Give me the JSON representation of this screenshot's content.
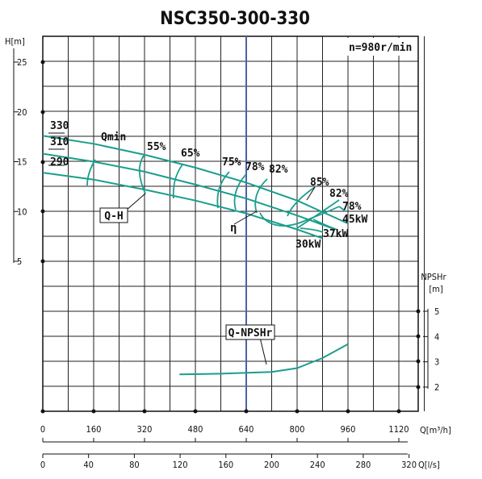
{
  "chart_data": {
    "type": "line",
    "title": "NSC350-300-330",
    "speed_label": "n=980r/min",
    "x_axis_flow_m3h": {
      "label": "Q[m³/h]",
      "ticks": [
        "0",
        "160",
        "320",
        "480",
        "640",
        "800",
        "960",
        "1120"
      ],
      "range": [
        0,
        1200
      ]
    },
    "x_axis_flow_ls": {
      "label": "Q[l/s]",
      "ticks": [
        "0",
        "40",
        "80",
        "120",
        "160",
        "200",
        "240",
        "280",
        "320"
      ],
      "range": [
        0,
        333.3
      ]
    },
    "y_axis_head": {
      "label": "H[m]",
      "ticks": [
        "5",
        "10",
        "15",
        "20",
        "25"
      ],
      "range": [
        0,
        25
      ]
    },
    "y_axis_npsh": {
      "label": "NPSHr",
      "unit": "[m]",
      "ticks": [
        "2",
        "3",
        "4",
        "5"
      ],
      "range": [
        2,
        5
      ]
    },
    "impeller_labels": [
      "330",
      "310",
      "290"
    ],
    "curve_labels": {
      "qmin": "Qmin",
      "qh": "Q-H",
      "eta": "η",
      "npsh": "Q-NPSHr"
    },
    "efficiency_labels": [
      "55%",
      "65%",
      "75%",
      "78%",
      "82%",
      "85%",
      "82%",
      "78%"
    ],
    "power_labels": [
      "30kW",
      "37kW",
      "45kW"
    ],
    "qh_series": [
      {
        "name": "330",
        "points": [
          [
            0,
            17.6
          ],
          [
            160,
            16.8
          ],
          [
            320,
            15.7
          ],
          [
            480,
            14.4
          ],
          [
            640,
            12.9
          ],
          [
            800,
            11.1
          ],
          [
            960,
            8.8
          ]
        ]
      },
      {
        "name": "310",
        "points": [
          [
            0,
            15.8
          ],
          [
            160,
            15.0
          ],
          [
            320,
            14.0
          ],
          [
            480,
            12.7
          ],
          [
            640,
            11.3
          ],
          [
            800,
            9.6
          ],
          [
            920,
            8.2
          ]
        ]
      },
      {
        "name": "290",
        "points": [
          [
            0,
            13.9
          ],
          [
            160,
            13.2
          ],
          [
            320,
            12.2
          ],
          [
            480,
            11.1
          ],
          [
            640,
            9.8
          ],
          [
            800,
            8.2
          ],
          [
            880,
            7.3
          ]
        ]
      }
    ],
    "npsh_series": {
      "name": "Q-NPSHr",
      "points": [
        [
          430,
          2.5
        ],
        [
          560,
          2.53
        ],
        [
          720,
          2.6
        ],
        [
          800,
          2.75
        ],
        [
          880,
          3.15
        ],
        [
          960,
          3.7
        ]
      ]
    },
    "highlight_line_flow": 640,
    "grid": true
  }
}
